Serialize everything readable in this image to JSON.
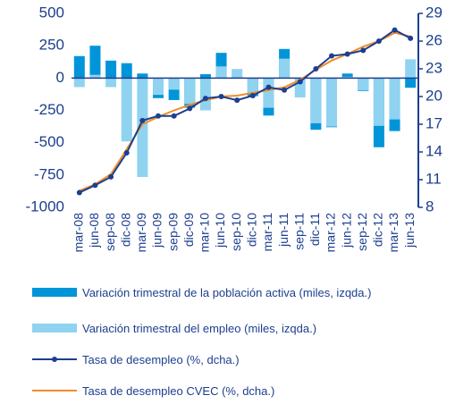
{
  "chart_data": {
    "type": "bar-line",
    "categories": [
      "mar-08",
      "jun-08",
      "sep-08",
      "dic-08",
      "mar-09",
      "jun-09",
      "sep-09",
      "dic-09",
      "mar-10",
      "jun-10",
      "sep-10",
      "dic-10",
      "mar-11",
      "jun-11",
      "sep-11",
      "dic-11",
      "mar-12",
      "jun-12",
      "sep-12",
      "dic-12",
      "mar-13",
      "jun-13"
    ],
    "series": [
      {
        "name": "Variación trimestral de la población activa (miles, izqda.)",
        "type": "bar",
        "axis": "y",
        "color": "#0095d9",
        "values": [
          170,
          250,
          135,
          115,
          35,
          -155,
          -170,
          -230,
          30,
          195,
          15,
          -140,
          -290,
          225,
          -5,
          -400,
          -380,
          35,
          -100,
          -535,
          -410,
          -75
        ]
      },
      {
        "name": "Variación trimestral del empleo (miles, izqda.)",
        "type": "bar",
        "axis": "y",
        "color": "#8fd3f1",
        "values": [
          -70,
          25,
          -70,
          -490,
          -765,
          -130,
          -90,
          -200,
          -250,
          90,
          70,
          -120,
          -230,
          150,
          -150,
          -350,
          -375,
          10,
          -95,
          -370,
          -320,
          145
        ]
      },
      {
        "name": "Tasa de desempleo (%, dcha.)",
        "type": "line",
        "axis": "y2",
        "color": "#1c3f8f",
        "marker": true,
        "values": [
          9.6,
          10.4,
          11.3,
          13.9,
          17.4,
          17.9,
          17.9,
          18.7,
          19.8,
          20.0,
          19.6,
          20.1,
          21.0,
          20.7,
          21.6,
          23.0,
          24.4,
          24.6,
          25.0,
          26.0,
          27.2,
          26.3
        ]
      },
      {
        "name": "Tasa de desempleo CVEC (%, dcha.)",
        "type": "line",
        "axis": "y2",
        "color": "#f28c28",
        "marker": false,
        "values": [
          9.8,
          10.5,
          11.6,
          14.3,
          17.0,
          17.8,
          18.5,
          19.1,
          19.6,
          20.0,
          20.1,
          20.4,
          20.7,
          21.0,
          21.8,
          22.9,
          23.9,
          24.6,
          25.4,
          26.0,
          26.9,
          26.5
        ]
      }
    ],
    "ylim": [
      -1000,
      500
    ],
    "yticks": [
      -1000,
      -750,
      -500,
      -250,
      0,
      250,
      500
    ],
    "y2lim": [
      8,
      29
    ],
    "y2ticks": [
      8,
      11,
      14,
      17,
      20,
      23,
      26,
      29
    ]
  }
}
